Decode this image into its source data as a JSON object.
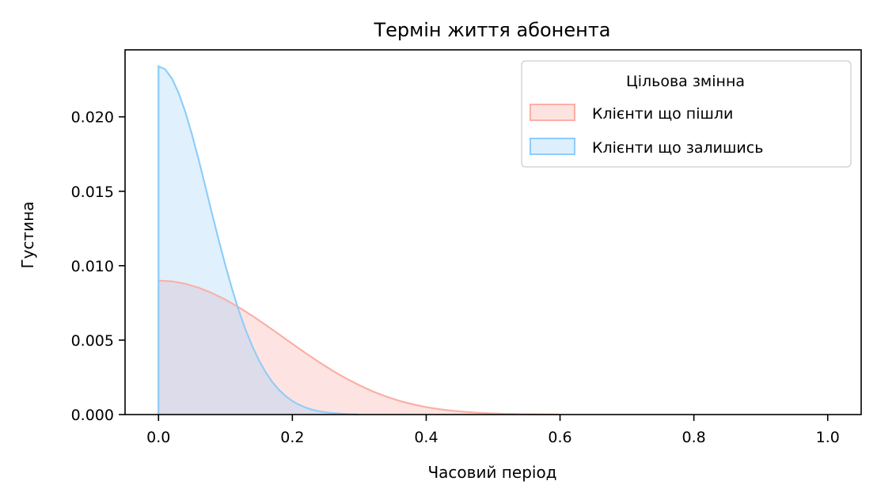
{
  "chart_data": {
    "type": "area",
    "title": "Термін життя абонента",
    "xlabel": "Часовий період",
    "ylabel": "Густина",
    "xlim": [
      -0.05,
      1.05
    ],
    "ylim": [
      0,
      0.0245
    ],
    "xticks": [
      0.0,
      0.2,
      0.4,
      0.6,
      0.8,
      1.0
    ],
    "xtick_labels": [
      "0.0",
      "0.2",
      "0.4",
      "0.6",
      "0.8",
      "1.0"
    ],
    "yticks": [
      0.0,
      0.005,
      0.01,
      0.015,
      0.02
    ],
    "ytick_labels": [
      "0.000",
      "0.005",
      "0.010",
      "0.015",
      "0.020"
    ],
    "grid": false,
    "legend": {
      "title": "Цільова змінна",
      "placement": "top-right"
    },
    "series": [
      {
        "name": "Клієнти що пішли",
        "color": "#FBAFA4",
        "fill": "#FDE3E0",
        "x": [
          0.0,
          0.02,
          0.04,
          0.06,
          0.08,
          0.1,
          0.12,
          0.14,
          0.16,
          0.18,
          0.2,
          0.22,
          0.24,
          0.26,
          0.28,
          0.3,
          0.32,
          0.34,
          0.36,
          0.38,
          0.4,
          0.42,
          0.44,
          0.46,
          0.48,
          0.5,
          0.55,
          0.6
        ],
        "values": [
          0.009,
          0.00895,
          0.00879,
          0.00852,
          0.00816,
          0.00772,
          0.0072,
          0.00664,
          0.00602,
          0.00539,
          0.00475,
          0.00412,
          0.00352,
          0.00295,
          0.00243,
          0.00197,
          0.00156,
          0.00121,
          0.00092,
          0.00069,
          0.0005,
          0.00036,
          0.00025,
          0.00017,
          0.00011,
          7e-05,
          2e-05,
          0.0
        ]
      },
      {
        "name": "Клієнти що залишись",
        "color": "#8ECDF9",
        "fill": "#DDEFFD",
        "x": [
          0.0,
          0.01,
          0.02,
          0.03,
          0.04,
          0.05,
          0.06,
          0.07,
          0.08,
          0.09,
          0.1,
          0.11,
          0.12,
          0.13,
          0.14,
          0.15,
          0.16,
          0.17,
          0.18,
          0.19,
          0.2,
          0.21,
          0.22,
          0.23,
          0.24,
          0.25,
          0.26,
          0.28,
          0.3
        ],
        "values": [
          0.0234,
          0.02319,
          0.02258,
          0.02161,
          0.02034,
          0.01881,
          0.01712,
          0.01532,
          0.0135,
          0.01171,
          0.01001,
          0.00842,
          0.00698,
          0.00571,
          0.0046,
          0.00365,
          0.00285,
          0.00219,
          0.00166,
          0.00124,
          0.00091,
          0.00066,
          0.00047,
          0.00032,
          0.00022,
          0.00015,
          0.0001,
          4e-05,
          0.0
        ]
      }
    ]
  }
}
